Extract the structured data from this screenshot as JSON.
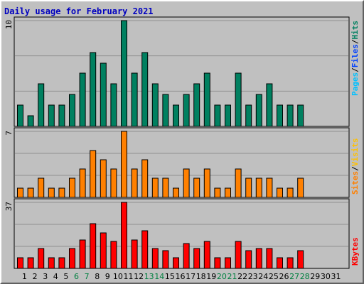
{
  "chart_data": {
    "type": "bar",
    "title": "Daily usage for February 2021",
    "categories": [
      "1",
      "2",
      "3",
      "4",
      "5",
      "6",
      "7",
      "8",
      "9",
      "10",
      "11",
      "12",
      "13",
      "14",
      "15",
      "16",
      "17",
      "18",
      "19",
      "20",
      "21",
      "22",
      "23",
      "24",
      "25",
      "26",
      "27",
      "28",
      "29",
      "30",
      "31"
    ],
    "weekend_days": [
      "6",
      "7",
      "13",
      "14",
      "20",
      "21",
      "27",
      "28"
    ],
    "colors": {
      "hits": "#008060",
      "files": "#0040ff",
      "pages": "#00c0ff",
      "visits": "#ff8000",
      "sites": "#ffc000",
      "kbytes": "#ff0000",
      "title": "#0000c0",
      "weekend_label": "#008040",
      "weekday_label": "#000000"
    },
    "panels": [
      {
        "id": "hits",
        "scale_label": "10",
        "ylim": [
          0,
          10
        ],
        "legend": [
          {
            "text": "Pages",
            "color_key": "pages"
          },
          {
            "text": "/",
            "color_key": "weekday_label"
          },
          {
            "text": "Files",
            "color_key": "files"
          },
          {
            "text": "/",
            "color_key": "weekday_label"
          },
          {
            "text": "Hits",
            "color_key": "hits"
          }
        ],
        "series": [
          {
            "name": "Hits",
            "color_key": "hits",
            "values": [
              2,
              1,
              4,
              2,
              2,
              3,
              5,
              7,
              6,
              4,
              10,
              5,
              7,
              4,
              3,
              2,
              3,
              4,
              5,
              2,
              2,
              5,
              2,
              3,
              4,
              2,
              2,
              2,
              null,
              null,
              null
            ]
          }
        ]
      },
      {
        "id": "visits",
        "scale_label": "7",
        "ylim": [
          0,
          7
        ],
        "legend": [
          {
            "text": "Sites",
            "color_key": "visits"
          },
          {
            "text": "/",
            "color_key": "weekday_label"
          },
          {
            "text": "Visits",
            "color_key": "sites"
          }
        ],
        "series": [
          {
            "name": "Visits",
            "color_key": "visits",
            "values": [
              1,
              1,
              2,
              1,
              1,
              2,
              3,
              5,
              4,
              3,
              7,
              3,
              4,
              2,
              2,
              1,
              3,
              2,
              3,
              1,
              1,
              3,
              2,
              2,
              2,
              1,
              1,
              2,
              null,
              null,
              null
            ]
          }
        ]
      },
      {
        "id": "kbytes",
        "scale_label": "37",
        "ylim": [
          0,
          37
        ],
        "legend": [
          {
            "text": "KBytes",
            "color_key": "kbytes"
          }
        ],
        "series": [
          {
            "name": "KBytes",
            "color_key": "kbytes",
            "values": [
              6,
              6,
              11,
              6,
              6,
              11,
              16,
              25,
              20,
              15,
              37,
              16,
              21,
              11,
              10,
              6,
              14,
              11,
              15,
              6,
              6,
              15,
              10,
              11,
              11,
              6,
              6,
              10,
              null,
              null,
              null
            ]
          }
        ]
      }
    ]
  }
}
